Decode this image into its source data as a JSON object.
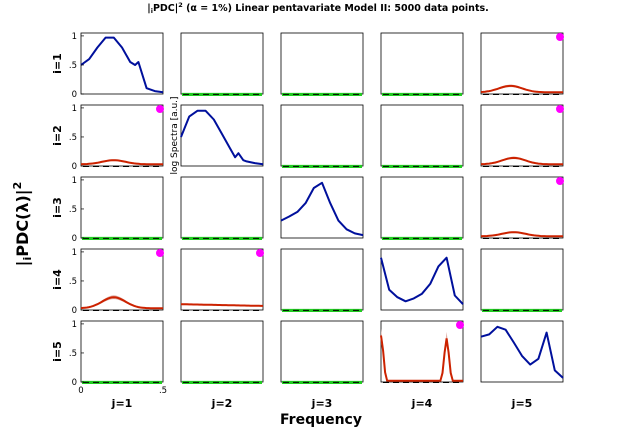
{
  "title": {
    "prefix": "|",
    "sub": "i",
    "pdc": "PDC|",
    "sup": "2",
    "alpha": " (α = 1%) Linear pentavariate Model II: 5000 data points."
  },
  "ylabel": {
    "prefix": "|",
    "sub": "i",
    "pdc": "PDC(λ)|",
    "sup": "2"
  },
  "xlabel": "Frequency",
  "diag_label": "log Spectra [a.u.]",
  "y_ticks": [
    "0",
    ".5",
    "1"
  ],
  "x_ticks": [
    "0",
    ".5"
  ],
  "row_labels": [
    "i=1",
    "i=2",
    "i=3",
    "i=4",
    "i=5"
  ],
  "col_labels": [
    "j=1",
    "j=2",
    "j=3",
    "j=4",
    "j=5"
  ],
  "colors": {
    "significant": "#cc2200",
    "ci_band": "#e0b0a8",
    "nonsignificant": "#22cc22",
    "threshold": "#000000",
    "spectrum": "#00109c",
    "marker": "#ff00ff"
  },
  "chart_data": {
    "type": "line",
    "grid": "5x5 matrix of small multiples",
    "xlim": [
      0,
      0.5
    ],
    "ylim": [
      0,
      1.05
    ],
    "note": "Off-diagonal panels show |PDC|^2 from j to i; diagonal panels show log spectra.",
    "significant_links": [
      {
        "i": 1,
        "j": 5,
        "peak": 0.14,
        "peak_freq": 0.18,
        "threshold": 0.01
      },
      {
        "i": 2,
        "j": 1,
        "peak": 0.1,
        "peak_freq": 0.2,
        "threshold": 0.01
      },
      {
        "i": 2,
        "j": 5,
        "peak": 0.14,
        "peak_freq": 0.2,
        "threshold": 0.01
      },
      {
        "i": 3,
        "j": 5,
        "peak": 0.1,
        "peak_freq": 0.2,
        "threshold": 0.01
      },
      {
        "i": 4,
        "j": 1,
        "peak": 0.22,
        "peak_freq": 0.2,
        "threshold": 0.01
      },
      {
        "i": 4,
        "j": 2,
        "peak": 0.1,
        "peak_freq": 0.0,
        "threshold": 0.01
      },
      {
        "i": 5,
        "j": 4,
        "peak": 0.8,
        "peak_freq": 0.0,
        "second_peak": 0.75,
        "second_peak_freq": 0.4,
        "threshold": 0.01
      }
    ],
    "diagonal_spectra": [
      {
        "i": 1,
        "x": [
          0,
          0.05,
          0.1,
          0.15,
          0.2,
          0.25,
          0.3,
          0.33,
          0.35,
          0.38,
          0.4,
          0.45,
          0.5
        ],
        "y": [
          0.5,
          0.6,
          0.8,
          0.97,
          0.97,
          0.8,
          0.55,
          0.5,
          0.55,
          0.28,
          0.1,
          0.05,
          0.03
        ]
      },
      {
        "i": 2,
        "x": [
          0,
          0.05,
          0.1,
          0.15,
          0.2,
          0.25,
          0.3,
          0.33,
          0.35,
          0.38,
          0.4,
          0.45,
          0.5
        ],
        "y": [
          0.5,
          0.85,
          0.95,
          0.95,
          0.8,
          0.55,
          0.3,
          0.15,
          0.22,
          0.1,
          0.08,
          0.05,
          0.03
        ]
      },
      {
        "i": 3,
        "x": [
          0,
          0.05,
          0.1,
          0.15,
          0.2,
          0.25,
          0.3,
          0.35,
          0.4,
          0.45,
          0.5
        ],
        "y": [
          0.3,
          0.37,
          0.45,
          0.6,
          0.86,
          0.95,
          0.6,
          0.3,
          0.15,
          0.08,
          0.05
        ]
      },
      {
        "i": 4,
        "x": [
          0,
          0.05,
          0.1,
          0.15,
          0.2,
          0.25,
          0.3,
          0.35,
          0.4,
          0.45,
          0.5
        ],
        "y": [
          0.9,
          0.35,
          0.22,
          0.15,
          0.2,
          0.28,
          0.45,
          0.75,
          0.9,
          0.25,
          0.1
        ]
      },
      {
        "i": 5,
        "x": [
          0,
          0.05,
          0.1,
          0.15,
          0.2,
          0.25,
          0.3,
          0.35,
          0.4,
          0.45,
          0.5
        ],
        "y": [
          0.78,
          0.82,
          0.95,
          0.9,
          0.68,
          0.45,
          0.3,
          0.4,
          0.85,
          0.2,
          0.07
        ]
      }
    ]
  }
}
